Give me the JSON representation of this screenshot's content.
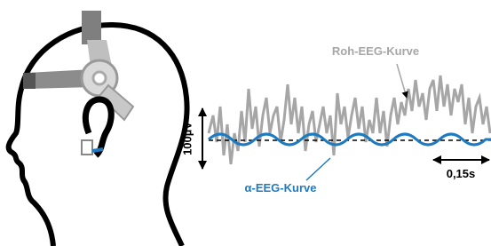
{
  "labels": {
    "raw": "Roh-EEG-Kurve",
    "alpha": "α-EEG-Kurve",
    "amplitude": "100µV",
    "time": "0,15s"
  }
}
